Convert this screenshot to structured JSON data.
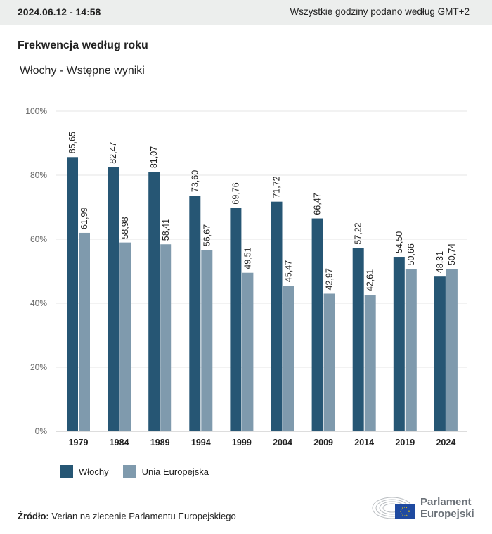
{
  "header": {
    "datetime": "2024.06.12 - 14:58",
    "timezone_note": "Wszystkie godziny podano według GMT+2"
  },
  "title": "Frekwencja według roku",
  "subtitle": "Włochy - Wstępne wyniki",
  "colors": {
    "italy": "#265674",
    "eu": "#7f9aad",
    "grid": "#e6e6e6"
  },
  "chart_data": {
    "type": "bar",
    "title": "Frekwencja według roku",
    "subtitle": "Włochy - Wstępne wyniki",
    "categories": [
      "1979",
      "1984",
      "1989",
      "1994",
      "1999",
      "2004",
      "2009",
      "2014",
      "2019",
      "2024"
    ],
    "series": [
      {
        "name": "Włochy",
        "values": [
          85.65,
          82.47,
          81.07,
          73.6,
          69.76,
          71.72,
          66.47,
          57.22,
          54.5,
          48.31
        ],
        "labels": [
          "85,65",
          "82,47",
          "81,07",
          "73,60",
          "69,76",
          "71,72",
          "66,47",
          "57,22",
          "54,50",
          "48,31"
        ]
      },
      {
        "name": "Unia Europejska",
        "values": [
          61.99,
          58.98,
          58.41,
          56.67,
          49.51,
          45.47,
          42.97,
          42.61,
          50.66,
          50.74
        ],
        "labels": [
          "61,99",
          "58,98",
          "58,41",
          "56,67",
          "49,51",
          "45,47",
          "42,97",
          "42,61",
          "50,66",
          "50,74"
        ]
      }
    ],
    "yticks": [
      "0%",
      "20%",
      "40%",
      "60%",
      "80%",
      "100%"
    ],
    "ylim": [
      0,
      100
    ],
    "grid": true,
    "legend": "bottom-left"
  },
  "legend": {
    "items": [
      "Włochy",
      "Unia Europejska"
    ]
  },
  "source": {
    "label": "Źródło:",
    "text": " Verian na zlecenie Parlamentu Europejskiego"
  },
  "logo": {
    "line1": "Parlament",
    "line2": "Europejski"
  }
}
